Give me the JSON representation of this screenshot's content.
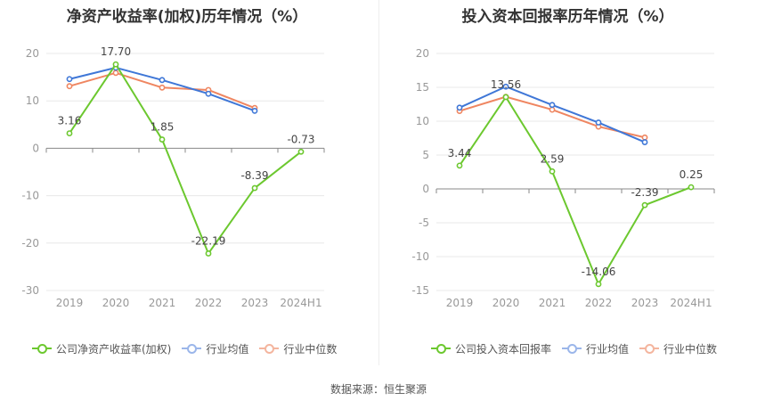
{
  "colors": {
    "company": "#6cc82f",
    "avg": "#3f77d7",
    "median": "#ef8661",
    "grid": "#e8e8e8",
    "axis": "#999999",
    "zero": "#888888"
  },
  "source": "数据来源：恒生聚源",
  "chart_data": [
    {
      "type": "line",
      "title": "净资产收益率(加权)历年情况（%）",
      "categories": [
        "2019",
        "2020",
        "2021",
        "2022",
        "2023",
        "2024H1"
      ],
      "ylim": [
        -30,
        20
      ],
      "yticks": [
        20,
        10,
        0,
        -10,
        -20,
        -30
      ],
      "yticks_labels": [
        "20",
        "10",
        "0",
        "-10",
        "-20",
        "-30"
      ],
      "legend_position": "bottom",
      "series": [
        {
          "name": "公司净资产收益率(加权)",
          "key": "company",
          "values": [
            3.16,
            17.7,
            1.85,
            -22.19,
            -8.39,
            -0.73
          ],
          "labels": [
            "3.16",
            "17.70",
            "1.85",
            "-22.19",
            "-8.39",
            "-0.73"
          ]
        },
        {
          "name": "行业均值",
          "key": "avg",
          "values": [
            14.6,
            17.0,
            14.4,
            11.5,
            7.9,
            null
          ]
        },
        {
          "name": "行业中位数",
          "key": "median",
          "values": [
            13.1,
            15.9,
            12.8,
            12.3,
            8.5,
            null
          ]
        }
      ]
    },
    {
      "type": "line",
      "title": "投入资本回报率历年情况（%）",
      "categories": [
        "2019",
        "2020",
        "2021",
        "2022",
        "2023",
        "2024H1"
      ],
      "ylim": [
        -15,
        20
      ],
      "yticks": [
        20,
        15,
        10,
        5,
        0,
        -5,
        -10,
        -15
      ],
      "yticks_labels": [
        "20",
        "15",
        "10",
        "5",
        "0",
        "-5",
        "-10",
        "-15"
      ],
      "legend_position": "bottom",
      "series": [
        {
          "name": "公司投入资本回报率",
          "key": "company",
          "values": [
            3.44,
            13.56,
            2.59,
            -14.06,
            -2.39,
            0.25
          ],
          "labels": [
            "3.44",
            "13.56",
            "2.59",
            "-14.06",
            "-2.39",
            "0.25"
          ]
        },
        {
          "name": "行业均值",
          "key": "avg",
          "values": [
            12.0,
            15.1,
            12.4,
            9.8,
            6.9,
            null
          ]
        },
        {
          "name": "行业中位数",
          "key": "median",
          "values": [
            11.5,
            13.6,
            11.7,
            9.2,
            7.6,
            null
          ]
        }
      ]
    }
  ]
}
